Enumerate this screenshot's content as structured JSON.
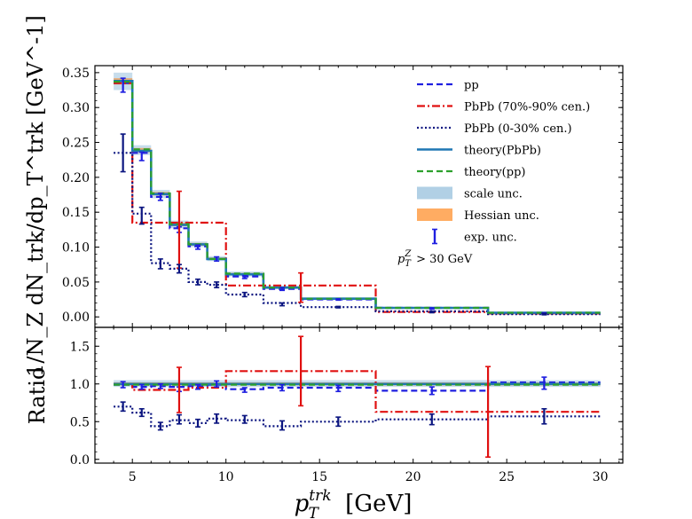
{
  "chart_data": [
    {
      "type": "line",
      "panel": "top",
      "ylabel": "1/N_Z dN_trk/dp_T^trk [GeV^-1]",
      "xlim": [
        3,
        31.2
      ],
      "ylim": [
        -0.015,
        0.36
      ],
      "x_ticks": [
        5,
        10,
        15,
        20,
        25,
        30
      ],
      "y_ticks": [
        "0.00",
        "0.05",
        "0.10",
        "0.15",
        "0.20",
        "0.25",
        "0.30",
        "0.35"
      ],
      "bin_edges": [
        4,
        5,
        6,
        7,
        8,
        9,
        10,
        12,
        14,
        18,
        24,
        30
      ],
      "series": [
        {
          "name": "pp",
          "style": "dashed",
          "color": "#1f1fe0",
          "values": [
            0.335,
            0.235,
            0.172,
            0.127,
            0.101,
            0.083,
            0.058,
            0.04,
            0.025,
            0.013,
            0.005
          ]
        },
        {
          "name": "PbPb (70%-90% cen.)",
          "style": "dashdot",
          "color": "#e01010",
          "values": [
            0.335,
            0.135,
            0.135,
            0.135,
            0.135,
            0.135,
            0.045,
            0.045,
            0.045,
            0.007,
            0.005
          ]
        },
        {
          "name": "PbPb (0-30% cen.)",
          "style": "dotted",
          "color": "#0b1580",
          "values": [
            0.235,
            0.148,
            0.077,
            0.069,
            0.05,
            0.046,
            0.032,
            0.02,
            0.014,
            0.008,
            0.004
          ]
        },
        {
          "name": "theory(PbPb)",
          "style": "solid",
          "color": "#1f77b4",
          "values": [
            0.338,
            0.238,
            0.176,
            0.132,
            0.104,
            0.083,
            0.061,
            0.042,
            0.026,
            0.013,
            0.006
          ]
        },
        {
          "name": "theory(pp)",
          "style": "dashed",
          "color": "#2ca02c",
          "values": [
            0.337,
            0.24,
            0.177,
            0.133,
            0.104,
            0.083,
            0.062,
            0.042,
            0.026,
            0.013,
            0.006
          ]
        }
      ],
      "bands": [
        {
          "name": "scale unc.",
          "color": "#1f77b4",
          "opacity": 0.25,
          "low": [
            0.325,
            0.232,
            0.17,
            0.127,
            0.1,
            0.08,
            0.058,
            0.04,
            0.024,
            0.012,
            0.005
          ],
          "high": [
            0.35,
            0.246,
            0.182,
            0.138,
            0.108,
            0.087,
            0.065,
            0.045,
            0.028,
            0.014,
            0.007
          ]
        },
        {
          "name": "Hessian unc.",
          "color": "#ff7f0e",
          "opacity": 0.55,
          "low": [
            0.333,
            0.236,
            0.174,
            0.13,
            0.102,
            0.082,
            0.06,
            0.041,
            0.025,
            0.012,
            0.005
          ],
          "high": [
            0.342,
            0.242,
            0.179,
            0.135,
            0.106,
            0.085,
            0.063,
            0.043,
            0.027,
            0.013,
            0.006
          ]
        }
      ],
      "error_points": [
        {
          "series": "pp",
          "color": "#1f1fe0",
          "x": [
            4.5,
            5.5,
            6.5,
            7.5,
            8.5,
            9.5,
            11,
            13,
            16,
            21,
            27
          ],
          "y": [
            0.332,
            0.23,
            0.172,
            0.125,
            0.1,
            0.083,
            0.057,
            0.04,
            0.025,
            0.012,
            0.005
          ],
          "err": [
            0.01,
            0.006,
            0.005,
            0.004,
            0.003,
            0.003,
            0.002,
            0.002,
            0.001,
            0.001,
            0.001
          ]
        },
        {
          "series": "PbPb (70%-90% cen.)",
          "color": "#e01010",
          "x": [
            7.5,
            14
          ],
          "y": [
            0.125,
            0.042
          ],
          "err": [
            0.055,
            0.021
          ]
        },
        {
          "series": "PbPb (0-30% cen.)",
          "color": "#0b1580",
          "x": [
            4.5,
            5.5,
            6.5,
            7.5,
            8.5,
            9.5,
            11,
            13,
            16,
            21,
            27
          ],
          "y": [
            0.235,
            0.145,
            0.076,
            0.069,
            0.05,
            0.046,
            0.032,
            0.018,
            0.014,
            0.007,
            0.004
          ],
          "err": [
            0.027,
            0.012,
            0.007,
            0.006,
            0.004,
            0.004,
            0.003,
            0.002,
            0.001,
            0.001,
            0.001
          ]
        }
      ],
      "legend": {
        "location": "upper right",
        "entries": [
          "pp",
          "PbPb (70%-90% cen.)",
          "PbPb (0-30% cen.)",
          "theory(PbPb)",
          "theory(pp)",
          "scale unc.",
          "Hessian unc.",
          "exp. unc."
        ],
        "annotation": "p_T^Z > 30 GeV",
        "annotation_sup": "Z",
        "annotation_sub": "T",
        "annotation_rest": " > 30 GeV"
      }
    },
    {
      "type": "line",
      "panel": "bottom",
      "ylabel": "Ratio",
      "xlabel": "p_T^trk [GeV]",
      "xlabel_main": "p",
      "xlabel_sup": "trk",
      "xlabel_sub": "T",
      "xlabel_unit": "[GeV]",
      "xlim": [
        3,
        31.2
      ],
      "ylim": [
        -0.05,
        1.75
      ],
      "x_ticks": [
        "5",
        "10",
        "15",
        "20",
        "25",
        "30"
      ],
      "y_ticks": [
        "0.0",
        "0.5",
        "1.0",
        "1.5"
      ],
      "bin_edges": [
        4,
        5,
        6,
        7,
        8,
        9,
        10,
        12,
        14,
        18,
        24,
        30
      ],
      "series": [
        {
          "name": "pp",
          "style": "dashed",
          "color": "#1f1fe0",
          "values": [
            0.99,
            0.96,
            0.97,
            0.96,
            0.97,
            0.99,
            0.93,
            0.95,
            0.95,
            0.91,
            1.02
          ]
        },
        {
          "name": "PbPb (70%-90% cen.)",
          "style": "dashdot",
          "color": "#e01010",
          "values": [
            1.0,
            0.92,
            0.92,
            0.92,
            0.95,
            0.95,
            1.17,
            1.17,
            1.17,
            0.63,
            0.63
          ]
        },
        {
          "name": "PbPb (0-30% cen.)",
          "style": "dotted",
          "color": "#0b1580",
          "values": [
            0.7,
            0.62,
            0.44,
            0.52,
            0.48,
            0.54,
            0.52,
            0.44,
            0.5,
            0.53,
            0.57
          ]
        },
        {
          "name": "theory(PbPb)",
          "style": "solid",
          "color": "#1f77b4",
          "values": [
            1,
            1,
            1,
            1,
            1,
            1,
            1,
            1,
            1,
            1,
            1
          ]
        },
        {
          "name": "theory(pp)",
          "style": "dashed",
          "color": "#2ca02c",
          "values": [
            0.99,
            0.99,
            0.99,
            0.99,
            0.99,
            0.99,
            0.99,
            0.99,
            0.99,
            0.99,
            0.99
          ]
        }
      ],
      "bands": [
        {
          "name": "scale unc.",
          "color": "#1f77b4",
          "opacity": 0.25,
          "low": [
            0.96,
            0.96,
            0.96,
            0.96,
            0.96,
            0.96,
            0.96,
            0.96,
            0.96,
            0.96,
            0.96
          ],
          "high": [
            1.05,
            1.05,
            1.05,
            1.05,
            1.05,
            1.05,
            1.05,
            1.05,
            1.05,
            1.05,
            1.05
          ]
        },
        {
          "name": "Hessian unc.",
          "color": "#ff7f0e",
          "opacity": 0.55,
          "low": [
            0.98,
            0.98,
            0.98,
            0.98,
            0.98,
            0.98,
            0.98,
            0.98,
            0.98,
            0.98,
            0.98
          ],
          "high": [
            1.02,
            1.02,
            1.02,
            1.02,
            1.02,
            1.02,
            1.02,
            1.02,
            1.02,
            1.02,
            1.02
          ]
        }
      ],
      "error_points": [
        {
          "series": "pp",
          "color": "#1f1fe0",
          "x": [
            4.5,
            5.5,
            6.5,
            7.5,
            8.5,
            9.5,
            11,
            13,
            16,
            21,
            27
          ],
          "y": [
            0.99,
            0.96,
            0.97,
            0.93,
            0.96,
            1.0,
            0.92,
            0.95,
            0.94,
            0.91,
            1.01
          ],
          "err": [
            0.04,
            0.03,
            0.03,
            0.03,
            0.03,
            0.04,
            0.03,
            0.04,
            0.04,
            0.05,
            0.08
          ]
        },
        {
          "series": "PbPb (70%-90% cen.)",
          "color": "#e01010",
          "x": [
            7.5,
            14,
            24
          ],
          "y": [
            0.92,
            1.17,
            0.63
          ],
          "err": [
            0.3,
            0.46,
            0.6
          ]
        },
        {
          "series": "PbPb (0-30% cen.)",
          "color": "#0b1580",
          "x": [
            4.5,
            5.5,
            6.5,
            7.5,
            8.5,
            9.5,
            11,
            13,
            16,
            21,
            27
          ],
          "y": [
            0.7,
            0.62,
            0.44,
            0.53,
            0.48,
            0.54,
            0.53,
            0.45,
            0.5,
            0.53,
            0.57
          ],
          "err": [
            0.06,
            0.05,
            0.05,
            0.06,
            0.05,
            0.06,
            0.05,
            0.06,
            0.06,
            0.07,
            0.1
          ]
        }
      ]
    }
  ]
}
